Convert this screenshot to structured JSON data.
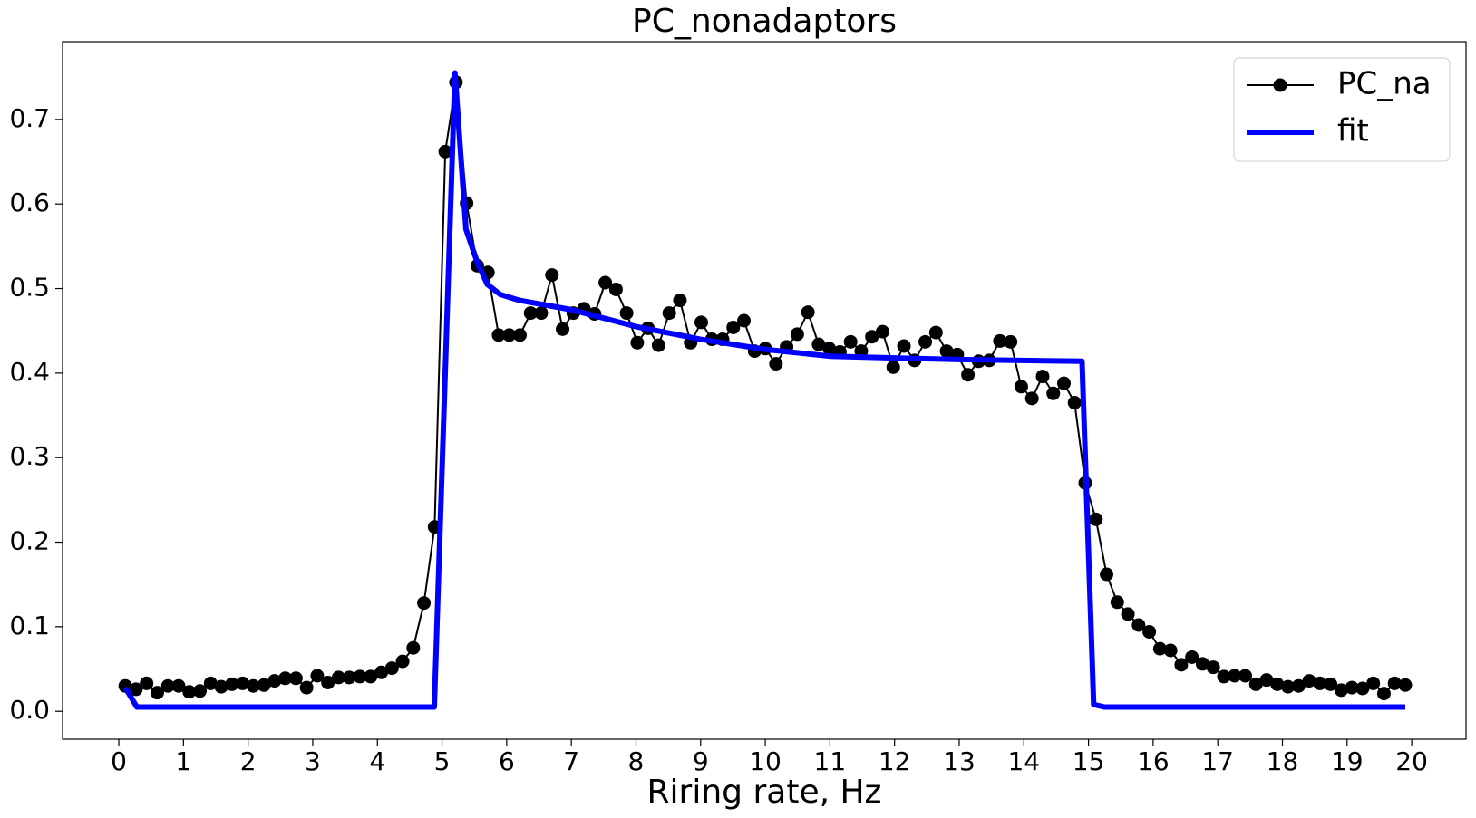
{
  "chart_data": {
    "type": "line",
    "title": "PC_nonadaptors",
    "x_label": "Riring rate, Hz",
    "xlim": [
      -0.87,
      20.84
    ],
    "ylim": [
      -0.033,
      0.792
    ],
    "xticks": [
      0,
      1,
      2,
      3,
      4,
      5,
      6,
      7,
      8,
      9,
      10,
      11,
      12,
      13,
      14,
      15,
      16,
      17,
      18,
      19,
      20
    ],
    "yticks": [
      {
        "value": 0,
        "label": "0.0"
      },
      0.1,
      0.2,
      0.3,
      0.4,
      0.5,
      0.6,
      0.7
    ],
    "grid": false,
    "legend": "upper right",
    "series": [
      {
        "name": "PC_na",
        "color": "#000000",
        "marker": "o",
        "x": [
          0.1,
          0.265,
          0.43,
          0.595,
          0.76,
          0.925,
          1.09,
          1.255,
          1.42,
          1.585,
          1.75,
          1.915,
          2.08,
          2.245,
          2.41,
          2.575,
          2.74,
          2.905,
          3.07,
          3.235,
          3.4,
          3.565,
          3.73,
          3.895,
          4.06,
          4.225,
          4.39,
          4.555,
          4.72,
          4.885,
          5.05,
          5.215,
          5.38,
          5.545,
          5.71,
          5.875,
          6.04,
          6.205,
          6.37,
          6.535,
          6.7,
          6.865,
          7.03,
          7.195,
          7.36,
          7.525,
          7.69,
          7.855,
          8.02,
          8.185,
          8.35,
          8.515,
          8.68,
          8.845,
          9.01,
          9.175,
          9.34,
          9.505,
          9.67,
          9.835,
          10.0,
          10.165,
          10.33,
          10.495,
          10.66,
          10.825,
          10.99,
          11.155,
          11.32,
          11.485,
          11.65,
          11.815,
          11.98,
          12.145,
          12.31,
          12.475,
          12.64,
          12.805,
          12.97,
          13.135,
          13.3,
          13.465,
          13.63,
          13.795,
          13.96,
          14.125,
          14.29,
          14.455,
          14.62,
          14.785,
          14.95,
          15.115,
          15.28,
          15.445,
          15.61,
          15.775,
          15.94,
          16.105,
          16.27,
          16.435,
          16.6,
          16.765,
          16.93,
          17.095,
          17.26,
          17.425,
          17.59,
          17.755,
          17.92,
          18.085,
          18.25,
          18.415,
          18.58,
          18.745,
          18.91,
          19.075,
          19.24,
          19.405,
          19.57,
          19.735,
          19.9
        ],
        "values": [
          0.03,
          0.026,
          0.033,
          0.022,
          0.03,
          0.03,
          0.023,
          0.024,
          0.033,
          0.029,
          0.032,
          0.033,
          0.03,
          0.031,
          0.036,
          0.039,
          0.039,
          0.028,
          0.042,
          0.034,
          0.04,
          0.04,
          0.041,
          0.041,
          0.046,
          0.051,
          0.059,
          0.075,
          0.128,
          0.218,
          0.662,
          0.744,
          0.601,
          0.527,
          0.519,
          0.445,
          0.445,
          0.445,
          0.471,
          0.471,
          0.516,
          0.452,
          0.471,
          0.476,
          0.47,
          0.507,
          0.499,
          0.471,
          0.436,
          0.453,
          0.433,
          0.471,
          0.486,
          0.436,
          0.46,
          0.44,
          0.44,
          0.454,
          0.462,
          0.426,
          0.429,
          0.411,
          0.431,
          0.446,
          0.472,
          0.434,
          0.429,
          0.425,
          0.437,
          0.426,
          0.443,
          0.449,
          0.407,
          0.432,
          0.415,
          0.437,
          0.448,
          0.426,
          0.422,
          0.398,
          0.414,
          0.415,
          0.438,
          0.437,
          0.384,
          0.37,
          0.396,
          0.376,
          0.388,
          0.365,
          0.27,
          0.227,
          0.162,
          0.129,
          0.115,
          0.102,
          0.094,
          0.074,
          0.072,
          0.055,
          0.064,
          0.056,
          0.052,
          0.041,
          0.042,
          0.042,
          0.032,
          0.037,
          0.032,
          0.029,
          0.03,
          0.036,
          0.033,
          0.032,
          0.025,
          0.028,
          0.027,
          0.033,
          0.021,
          0.033,
          0.031
        ]
      },
      {
        "name": "fit",
        "color": "#0000ff",
        "x": [
          0.1,
          0.28,
          4.88,
          5.2,
          5.37,
          5.55,
          5.7,
          5.9,
          6.2,
          7,
          8,
          9,
          10,
          11,
          12,
          13,
          14.9,
          15.08,
          15.25,
          19.9
        ],
        "values": [
          0.028,
          0.005,
          0.005,
          0.755,
          0.57,
          0.53,
          0.505,
          0.493,
          0.486,
          0.475,
          0.455,
          0.44,
          0.428,
          0.42,
          0.418,
          0.416,
          0.414,
          0.008,
          0.005,
          0.005
        ]
      }
    ]
  }
}
